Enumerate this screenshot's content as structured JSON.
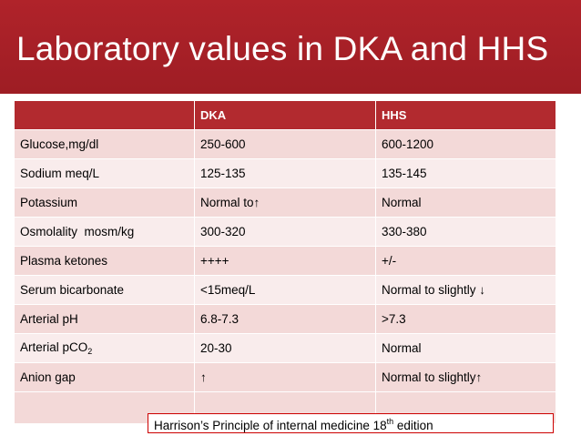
{
  "title": "Laboratory values in DKA and HHS",
  "table": {
    "headers": [
      "",
      "DKA",
      "HHS"
    ],
    "rows": [
      {
        "param": "Glucose,mg/dl",
        "dka": "250-600",
        "hhs": "600-1200"
      },
      {
        "param": "Sodium meq/L",
        "dka": "125-135",
        "hhs": "135-145"
      },
      {
        "param": "Potassium",
        "dka": "Normal to↑",
        "hhs": "Normal"
      },
      {
        "param": "Osmolality  mosm/kg",
        "dka": "300-320",
        "hhs": "330-380"
      },
      {
        "param": "Plasma ketones",
        "dka": "++++",
        "hhs": "+/-"
      },
      {
        "param": "Serum bicarbonate",
        "dka": "<15meq/L",
        "hhs": "Normal to slightly ↓"
      },
      {
        "param": "Arterial pH",
        "dka": "6.8-7.3",
        "hhs": ">7.3"
      },
      {
        "param_base": "Arterial pCO",
        "param_sub": "2",
        "dka": "20-30",
        "hhs": "Normal"
      },
      {
        "param": "Anion gap",
        "dka": "↑",
        "hhs": "Normal to slightly↑"
      }
    ]
  },
  "citation": {
    "text": "Harrison’s Principle of internal medicine 18",
    "sup": "th",
    "suffix": " edition"
  },
  "colors": {
    "header_bg": "#a8222a",
    "table_header_bg": "#b22a2f",
    "row_odd": "#f3d9d8",
    "row_even": "#f9ecec",
    "citation_border": "#cc0000"
  }
}
